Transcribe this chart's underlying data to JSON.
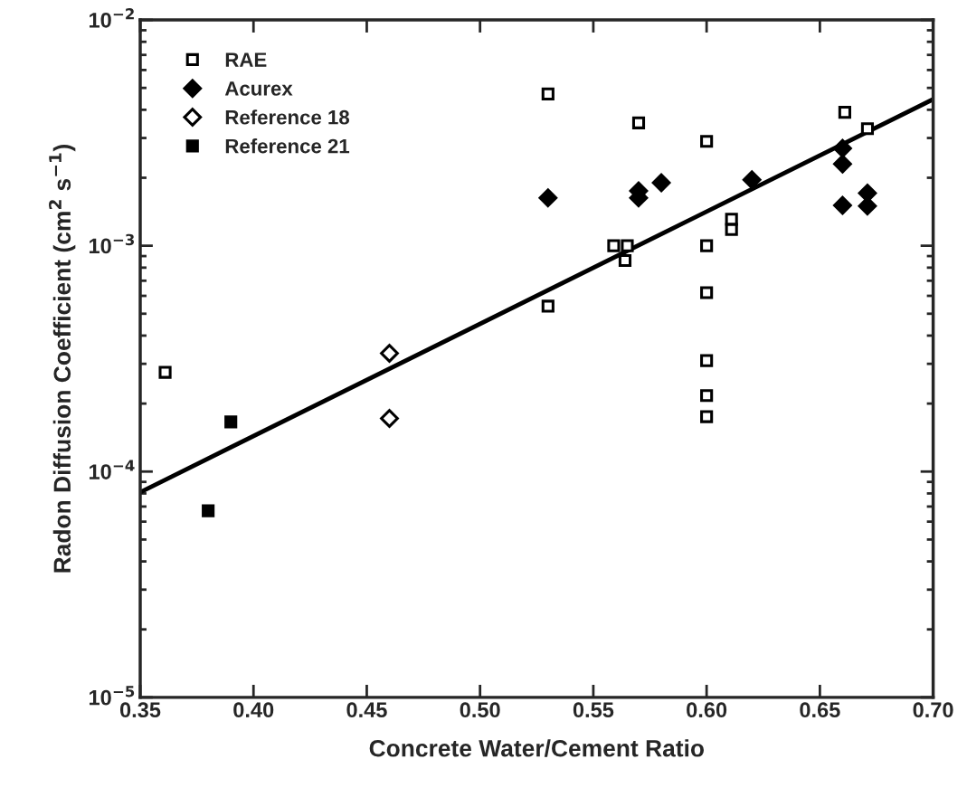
{
  "chart_data": {
    "type": "scatter",
    "xlabel": "Concrete Water/Cement Ratio",
    "ylabel": "Radon Diffusion Coefficient (cm$^{2}$ s$^{−1}$)",
    "xlim": [
      0.35,
      0.7
    ],
    "xticks": [
      {
        "value": 0.35,
        "label": "0.35"
      },
      {
        "value": 0.4,
        "label": "0.40"
      },
      {
        "value": 0.45,
        "label": "0.45"
      },
      {
        "value": 0.5,
        "label": "0.50"
      },
      {
        "value": 0.55,
        "label": "0.55"
      },
      {
        "value": 0.6,
        "label": "0.60"
      },
      {
        "value": 0.65,
        "label": "0.65"
      },
      {
        "value": 0.7,
        "label": "0.70"
      }
    ],
    "log": "y",
    "ylim": [
      1e-05,
      0.01
    ],
    "yticks": [
      {
        "value": 1e-05,
        "label": "10$^{−5}$"
      },
      {
        "value": 0.0001,
        "label": "10$^{−4}$"
      },
      {
        "value": 0.001,
        "label": "10$^{−3}$"
      },
      {
        "value": 0.01,
        "label": "10$^{−2}$"
      }
    ],
    "grid": false,
    "legend": "top left",
    "series": [
      {
        "name": "RAE",
        "color": "#ffffff",
        "marker": "square",
        "x": [
          0.361,
          0.53,
          0.53,
          0.57,
          0.6,
          0.559,
          0.565,
          0.564,
          0.6,
          0.6,
          0.6,
          0.6,
          0.6,
          0.611,
          0.611,
          0.661,
          0.671
        ],
        "values": [
          0.000275,
          0.0047,
          0.00054,
          0.0035,
          0.0029,
          0.001,
          0.001,
          0.00086,
          0.001,
          0.00062,
          0.00031,
          0.000217,
          0.000175,
          0.00131,
          0.00118,
          0.0039,
          0.0033
        ]
      },
      {
        "name": "Acurex",
        "color": "#000000",
        "marker": "diamond",
        "x": [
          0.53,
          0.57,
          0.57,
          0.58,
          0.62,
          0.66,
          0.66,
          0.66,
          0.671,
          0.671
        ],
        "values": [
          0.00163,
          0.00175,
          0.00163,
          0.0019,
          0.00196,
          0.0027,
          0.0023,
          0.00151,
          0.00171,
          0.0015
        ]
      },
      {
        "name": "Reference 18",
        "color": "#ffffff",
        "marker": "diamond",
        "x": [
          0.46,
          0.46
        ],
        "values": [
          0.000334,
          0.000172
        ]
      },
      {
        "name": "Reference 21",
        "color": "#000000",
        "marker": "square",
        "x": [
          0.39,
          0.38
        ],
        "values": [
          0.000166,
          6.7e-05
        ]
      },
      {
        "type": "line",
        "color": "#000000",
        "line_style": "solid",
        "x": [
          0.35,
          0.7
        ],
        "values": [
          8.1e-05,
          0.00445
        ]
      }
    ]
  }
}
